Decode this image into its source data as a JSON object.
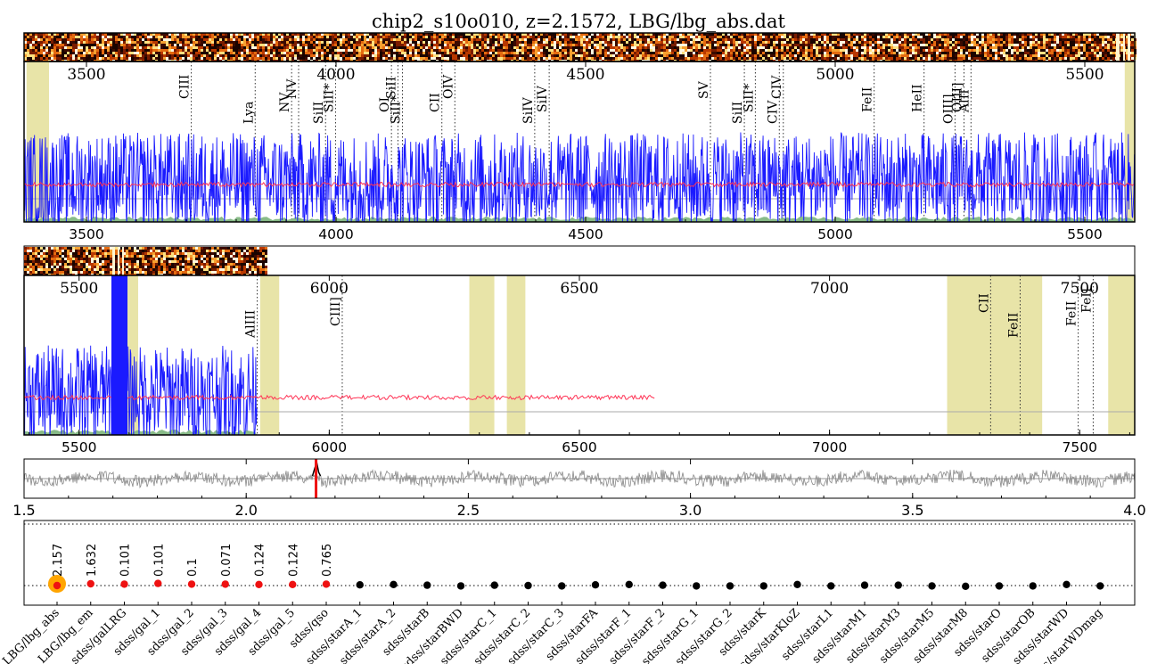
{
  "title": "chip2_s10o010, z=2.1572, LBG/lbg_abs.dat",
  "colors": {
    "flux": "#1a1aff",
    "model": "#ff3355",
    "error": "#88bb88",
    "mask": "#e8e4a8",
    "xcorr": "#888888",
    "zmarker": "#ee1111",
    "best": "#ffa500",
    "red_dot": "#ee1111",
    "black_dot": "#000000"
  },
  "chart_data": [
    {
      "type": "line",
      "panel": "spectrum-blue",
      "xlim": [
        3375,
        5600
      ],
      "ticks_top": [
        3500,
        4000,
        4500,
        5000,
        5500
      ],
      "tick_labels_top": [
        "3500",
        "4000",
        "4500",
        "5000",
        "5500"
      ],
      "ticks_bottom": [
        3500,
        4000,
        4500,
        5000,
        5500
      ],
      "tick_labels_bottom": [
        "3500",
        "4000",
        "4500",
        "5000",
        "5500"
      ],
      "lines": [
        {
          "label": "CIII",
          "x": 3710,
          "pos": "high"
        },
        {
          "label": "Lya",
          "x": 3838,
          "pos": "low"
        },
        {
          "label": "NV",
          "x": 3911,
          "pos": "mid"
        },
        {
          "label": "NV",
          "x": 3925,
          "pos": "high"
        },
        {
          "label": "SiII",
          "x": 3979,
          "pos": "low"
        },
        {
          "label": "SiII*",
          "x": 3999,
          "pos": "mid"
        },
        {
          "label": "OI",
          "x": 4111,
          "pos": "mid"
        },
        {
          "label": "SiII",
          "x": 4124,
          "pos": "high"
        },
        {
          "label": "SiII*",
          "x": 4133,
          "pos": "low"
        },
        {
          "label": "CII",
          "x": 4212,
          "pos": "mid"
        },
        {
          "label": "OIV",
          "x": 4238,
          "pos": "high"
        },
        {
          "label": "SiIV",
          "x": 4398,
          "pos": "low"
        },
        {
          "label": "SiIV",
          "x": 4427,
          "pos": "mid"
        },
        {
          "label": "SV",
          "x": 4750,
          "pos": "high"
        },
        {
          "label": "SiII",
          "x": 4818,
          "pos": "low"
        },
        {
          "label": "SiII*",
          "x": 4840,
          "pos": "mid"
        },
        {
          "label": "CIV",
          "x": 4888,
          "pos": "low"
        },
        {
          "label": "CIV",
          "x": 4896,
          "pos": "high"
        },
        {
          "label": "FeII",
          "x": 5078,
          "pos": "mid"
        },
        {
          "label": "HeII",
          "x": 5178,
          "pos": "mid"
        },
        {
          "label": "OIII]",
          "x": 5240,
          "pos": "low"
        },
        {
          "label": "OIII]",
          "x": 5258,
          "pos": "mid"
        },
        {
          "label": "AlII",
          "x": 5272,
          "pos": "mid"
        }
      ],
      "masks": [
        [
          3380,
          3425
        ],
        [
          5580,
          5600
        ]
      ]
    },
    {
      "type": "line",
      "panel": "spectrum-red",
      "xlim": [
        5390,
        7610
      ],
      "ticks_top": [
        5500,
        6000,
        6500,
        7000,
        7500
      ],
      "tick_labels_top": [
        "5500",
        "6000",
        "6500",
        "7000",
        "7500"
      ],
      "ticks_bottom": [
        5500,
        6000,
        6500,
        7000,
        7500
      ],
      "tick_labels_bottom": [
        "5500",
        "6000",
        "6500",
        "7000",
        "7500"
      ],
      "lines": [
        {
          "label": "AlIII",
          "x": 5856,
          "pos": "low"
        },
        {
          "label": "CIII]",
          "x": 6026,
          "pos": "mid"
        },
        {
          "label": "CII",
          "x": 7322,
          "pos": "high"
        },
        {
          "label": "FeII",
          "x": 7381,
          "pos": "low"
        },
        {
          "label": "FeII",
          "x": 7497,
          "pos": "mid"
        },
        {
          "label": "FeII",
          "x": 7527,
          "pos": "high"
        }
      ],
      "masks": [
        [
          5580,
          5618
        ],
        [
          5862,
          5900
        ],
        [
          6280,
          6330
        ],
        [
          6355,
          6392
        ],
        [
          7235,
          7425
        ],
        [
          7557,
          7610
        ]
      ]
    },
    {
      "type": "line",
      "panel": "cross-correlation",
      "xlim": [
        1.5,
        4.0
      ],
      "ticks": [
        1.5,
        2.0,
        2.5,
        3.0,
        3.5,
        4.0
      ],
      "tick_labels": [
        "1.5",
        "2.0",
        "2.5",
        "3.0",
        "3.5",
        "4.0"
      ],
      "redshift_marker": 2.1572
    },
    {
      "type": "scatter",
      "panel": "template-fits",
      "templates": [
        "LBG/lbg_abs",
        "LBG/lbg_em",
        "sdss/galLRG",
        "sdss/gal_1",
        "sdss/gal_2",
        "sdss/gal_3",
        "sdss/gal_4",
        "sdss/gal_5",
        "sdss/qso",
        "sdss/starA_1",
        "sdss/starA_2",
        "sdss/starB",
        "sdss/starBWD",
        "sdss/starC_1",
        "sdss/starC_2",
        "sdss/starC_3",
        "sdss/starFA",
        "sdss/starF_1",
        "sdss/starF_2",
        "sdss/starG_1",
        "sdss/starG_2",
        "sdss/starK",
        "sdss/starKloZ",
        "sdss/starL1",
        "sdss/starM1",
        "sdss/starM3",
        "sdss/starM5",
        "sdss/starM8",
        "sdss/starO",
        "sdss/starOB",
        "sdss/starWD",
        "sdss/starWDmag"
      ],
      "z_labels": [
        "2.157",
        "1.632",
        "0.101",
        "0.101",
        "0.1",
        "0.071",
        "0.124",
        "0.124",
        "0.765"
      ],
      "red_count": 9,
      "best_index": 0,
      "values": [
        0.0,
        0.05,
        0.04,
        0.06,
        0.04,
        0.04,
        0.03,
        0.03,
        0.04,
        0.02,
        0.03,
        0.01,
        -0.01,
        0.01,
        0.0,
        -0.01,
        0.02,
        0.03,
        0.01,
        -0.01,
        -0.01,
        -0.01,
        0.03,
        -0.01,
        0.01,
        0.01,
        -0.01,
        -0.02,
        -0.01,
        -0.01,
        0.03,
        -0.01
      ],
      "ylim": [
        -0.5,
        1.0
      ]
    }
  ]
}
